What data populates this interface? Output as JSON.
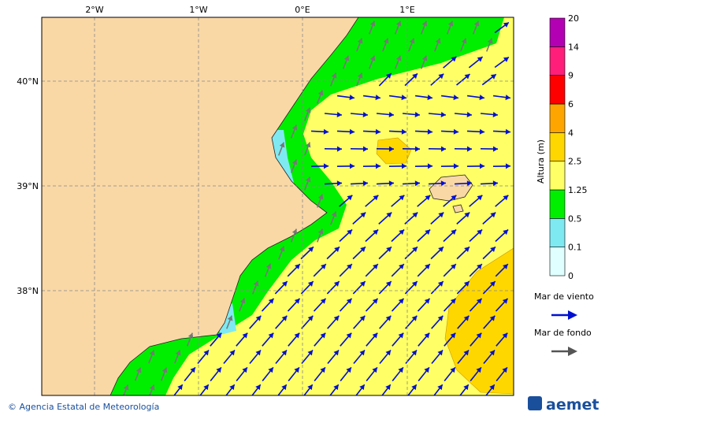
{
  "map": {
    "lon_labels": [
      "2°W",
      "1°W",
      "0°E",
      "1°E"
    ],
    "lat_labels": [
      "40°N",
      "39°N",
      "38°N"
    ],
    "colorbar": {
      "title": "Altura (m)",
      "levels": [
        "0",
        "0.1",
        "0.5",
        "1.25",
        "2.5",
        "4",
        "6",
        "9",
        "14",
        "20"
      ],
      "colors": [
        "#e0ffff",
        "#7fe9f2",
        "#00ee00",
        "#ffff66",
        "#ffd700",
        "#ffa500",
        "#ff0000",
        "#ff1f7a",
        "#b300b3"
      ]
    },
    "legend": [
      {
        "label": "Mar de viento",
        "color": "#0010d0"
      },
      {
        "label": "Mar de fondo",
        "color": "#555555"
      }
    ],
    "footer": {
      "credit": "© Agencia Estatal de Meteorología",
      "logo": "aemet"
    }
  }
}
